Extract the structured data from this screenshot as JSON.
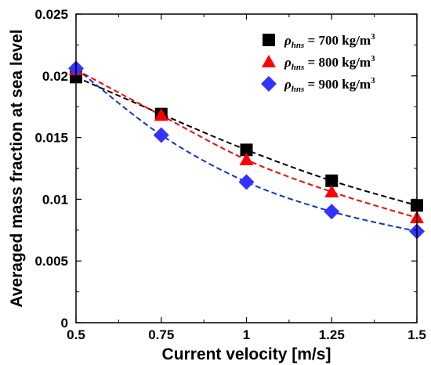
{
  "chart_data": {
    "type": "scatter",
    "title": "",
    "xlabel": "Current velocity [m/s]",
    "ylabel": "Averaged mass fraction at sea level",
    "xlim": [
      0.5,
      1.5
    ],
    "ylim": [
      0,
      0.025
    ],
    "x_ticks": [
      "0.5",
      "0.75",
      "1",
      "1.25",
      "1.5"
    ],
    "y_ticks": [
      "0",
      "0.005",
      "0.01",
      "0.015",
      "0.02",
      "0.025"
    ],
    "grid": false,
    "legend_position": "top-right",
    "x": [
      0.5,
      0.75,
      1.0,
      1.25,
      1.5
    ],
    "series": [
      {
        "name": "ρhns = 700 kg/m3",
        "symbol": "ρ",
        "subscript": "hns",
        "rest": " = 700 kg/m",
        "superscript": "3",
        "marker": "square",
        "color": "#000000",
        "trend_color": "#000000",
        "values": [
          0.0199,
          0.0169,
          0.014,
          0.0115,
          0.0095
        ]
      },
      {
        "name": "ρhns = 800 kg/m3",
        "symbol": "ρ",
        "subscript": "hns",
        "rest": " = 800 kg/m",
        "superscript": "3",
        "marker": "triangle",
        "color": "#ff0000",
        "trend_color": "#ff0000",
        "values": [
          0.0205,
          0.0168,
          0.0132,
          0.0106,
          0.0085
        ]
      },
      {
        "name": "ρhns = 900 kg/m3",
        "symbol": "ρ",
        "subscript": "hns",
        "rest": " = 900 kg/m",
        "superscript": "3",
        "marker": "diamond",
        "color": "#3333ff",
        "trend_color": "#1133cc",
        "values": [
          0.0206,
          0.0152,
          0.0114,
          0.009,
          0.0074
        ]
      }
    ]
  }
}
